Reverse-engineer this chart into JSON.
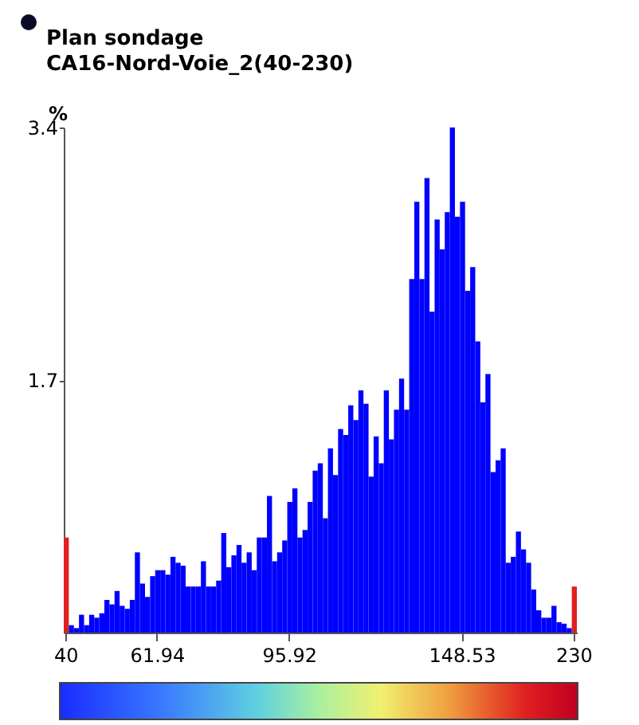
{
  "chart_data": {
    "type": "bar",
    "title": "Plan sondage",
    "subtitle": "CA16-Nord-Voie_2(40-230)",
    "ylabel": "%",
    "categories": [
      "40",
      null,
      null,
      null,
      null,
      null,
      null,
      null,
      null,
      null,
      null,
      null,
      null,
      null,
      null,
      null,
      null,
      null,
      "61.94",
      null,
      null,
      null,
      null,
      null,
      null,
      null,
      null,
      null,
      null,
      null,
      null,
      null,
      null,
      null,
      null,
      null,
      null,
      null,
      null,
      null,
      null,
      null,
      null,
      null,
      "95.92",
      null,
      null,
      null,
      null,
      null,
      null,
      null,
      null,
      null,
      null,
      null,
      null,
      null,
      null,
      null,
      null,
      null,
      null,
      null,
      null,
      null,
      null,
      null,
      null,
      null,
      null,
      null,
      null,
      null,
      null,
      null,
      null,
      null,
      "148.53",
      null,
      null,
      null,
      null,
      null,
      null,
      null,
      null,
      null,
      null,
      null,
      null,
      null,
      null,
      null,
      null,
      null,
      null,
      null,
      null,
      null,
      "230"
    ],
    "values": [
      0.64,
      0.05,
      0.03,
      0.12,
      0.05,
      0.12,
      0.1,
      0.13,
      0.22,
      0.19,
      0.28,
      0.18,
      0.16,
      0.22,
      0.54,
      0.33,
      0.24,
      0.38,
      0.42,
      0.42,
      0.39,
      0.51,
      0.47,
      0.45,
      0.31,
      0.31,
      0.31,
      0.48,
      0.31,
      0.31,
      0.35,
      0.67,
      0.44,
      0.52,
      0.59,
      0.47,
      0.54,
      0.42,
      0.64,
      0.64,
      0.92,
      0.48,
      0.54,
      0.62,
      0.88,
      0.97,
      0.64,
      0.69,
      0.88,
      1.09,
      1.14,
      0.77,
      1.24,
      1.06,
      1.37,
      1.33,
      1.53,
      1.43,
      1.63,
      1.54,
      1.05,
      1.32,
      1.14,
      1.63,
      1.3,
      1.5,
      1.71,
      1.5,
      2.38,
      2.9,
      2.38,
      3.06,
      2.16,
      2.78,
      2.58,
      2.83,
      3.4,
      2.8,
      2.9,
      2.3,
      2.46,
      1.96,
      1.55,
      1.74,
      1.08,
      1.16,
      1.24,
      0.47,
      0.51,
      0.68,
      0.56,
      0.47,
      0.29,
      0.15,
      0.1,
      0.1,
      0.18,
      0.07,
      0.06,
      0.03,
      0.31
    ],
    "colors": [
      "#e02020",
      "#0000ff",
      "#0000ff",
      "#0000ff",
      "#0000ff",
      "#0000ff",
      "#0000ff",
      "#0000ff",
      "#0000ff",
      "#0000ff",
      "#0000ff",
      "#0000ff",
      "#0000ff",
      "#0000ff",
      "#0000ff",
      "#0000ff",
      "#0000ff",
      "#0000ff",
      "#0000ff",
      "#0000ff",
      "#0000ff",
      "#0000ff",
      "#0000ff",
      "#0000ff",
      "#0000ff",
      "#0000ff",
      "#0000ff",
      "#0000ff",
      "#0000ff",
      "#0000ff",
      "#0000ff",
      "#0000ff",
      "#0000ff",
      "#0000ff",
      "#0000ff",
      "#0000ff",
      "#0000ff",
      "#0000ff",
      "#0000ff",
      "#0000ff",
      "#0000ff",
      "#0000ff",
      "#0000ff",
      "#0000ff",
      "#0000ff",
      "#0000ff",
      "#0000ff",
      "#0000ff",
      "#0000ff",
      "#0000ff",
      "#0000ff",
      "#0000ff",
      "#0000ff",
      "#0000ff",
      "#0000ff",
      "#0000ff",
      "#0000ff",
      "#0000ff",
      "#0000ff",
      "#0000ff",
      "#0000ff",
      "#0000ff",
      "#0000ff",
      "#0000ff",
      "#0000ff",
      "#0000ff",
      "#0000ff",
      "#0000ff",
      "#0000ff",
      "#0000ff",
      "#0000ff",
      "#0000ff",
      "#0000ff",
      "#0000ff",
      "#0000ff",
      "#0000ff",
      "#0000ff",
      "#0000ff",
      "#0000ff",
      "#0000ff",
      "#0000ff",
      "#0000ff",
      "#0000ff",
      "#0000ff",
      "#0000ff",
      "#0000ff",
      "#0000ff",
      "#0000ff",
      "#0000ff",
      "#0000ff",
      "#0000ff",
      "#0000ff",
      "#0000ff",
      "#0000ff",
      "#0000ff",
      "#0000ff",
      "#0000ff",
      "#0000ff",
      "#0000ff",
      "#0000ff",
      "#e02020"
    ],
    "ylim": [
      0,
      3.4
    ],
    "yticks": [
      1.7,
      3.4
    ],
    "grid": false
  }
}
